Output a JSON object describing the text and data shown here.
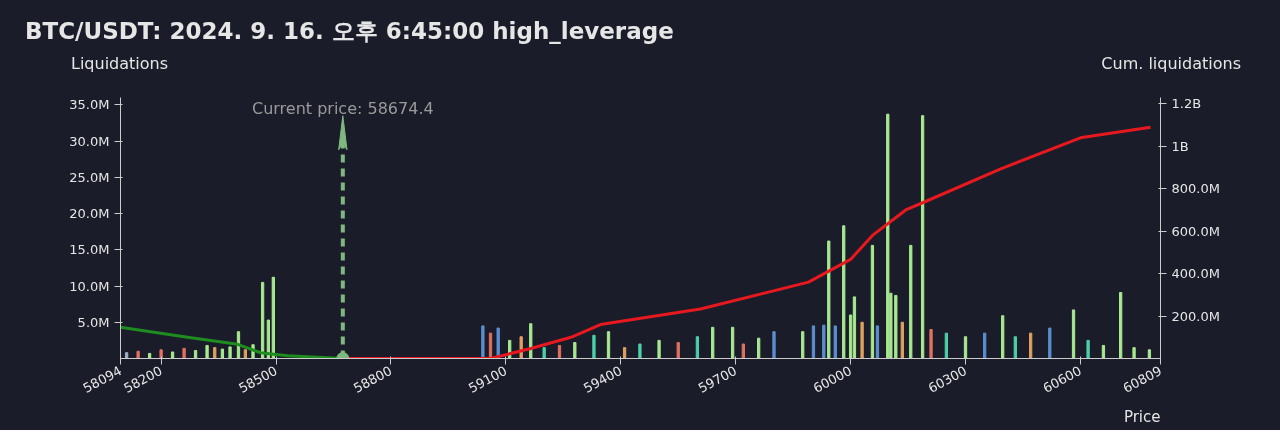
{
  "chart_data": {
    "type": "bar",
    "title": "BTC/USDT: 2024. 9. 16. 오후 6:45:00 high_leverage",
    "ylabel": "Liquidations",
    "y2label": "Cum. liquidations",
    "xlabel": "Price",
    "xlim": [
      58094,
      60809
    ],
    "xticks": [
      58094,
      58200,
      58500,
      58800,
      59100,
      59400,
      59700,
      60000,
      60300,
      60600,
      60809
    ],
    "ylim": [
      0,
      36000000
    ],
    "yticks": [
      {
        "value": 5000000,
        "label": "5.0M"
      },
      {
        "value": 10000000,
        "label": "10.0M"
      },
      {
        "value": 15000000,
        "label": "15.0M"
      },
      {
        "value": 20000000,
        "label": "20.0M"
      },
      {
        "value": 25000000,
        "label": "25.0M"
      },
      {
        "value": 30000000,
        "label": "30.0M"
      },
      {
        "value": 35000000,
        "label": "35.0M"
      }
    ],
    "y2lim": [
      0,
      1230000000
    ],
    "y2ticks": [
      {
        "value": 200000000,
        "label": "200.0M"
      },
      {
        "value": 400000000,
        "label": "400.0M"
      },
      {
        "value": 600000000,
        "label": "600.0M"
      },
      {
        "value": 800000000,
        "label": "800.0M"
      },
      {
        "value": 1000000000,
        "label": "1B"
      },
      {
        "value": 1200000000,
        "label": "1.2B"
      }
    ],
    "series": [
      {
        "x": [
          58110,
          58140,
          58170,
          58200,
          58230,
          58260,
          58290,
          58320,
          58340,
          58360,
          58380,
          58402,
          58420,
          58440,
          58465,
          58480,
          58493,
          58510,
          59040,
          59060,
          59080,
          59110,
          59140,
          59165,
          59200,
          59240,
          59280,
          59330,
          59368,
          59410,
          59450,
          59500,
          59550,
          59600,
          59640,
          59692,
          59720,
          59760,
          59800,
          59875,
          59903,
          59930,
          59943,
          59960,
          59982,
          60000,
          60010,
          60030,
          60057,
          60070,
          60097,
          60105,
          60118,
          60135,
          60157,
          60188,
          60210,
          60250,
          60300,
          60350,
          60397,
          60430,
          60470,
          60520,
          60582,
          60620,
          60660,
          60705,
          60740,
          60780
        ],
        "values": [
          800000,
          1000000,
          700000,
          1200000,
          900000,
          1400000,
          1100000,
          1800000,
          1500000,
          1300000,
          1600000,
          3700000,
          1200000,
          1900000,
          10500000,
          5300000,
          11200000,
          null,
          4500000,
          3500000,
          4200000,
          2500000,
          3000000,
          4800000,
          1500000,
          1800000,
          2200000,
          3200000,
          3700000,
          1500000,
          2000000,
          2500000,
          2200000,
          3000000,
          4300000,
          4300000,
          2000000,
          2800000,
          3700000,
          3700000,
          4500000,
          4600000,
          16200000,
          4500000,
          18300000,
          6000000,
          8500000,
          5000000,
          15600000,
          4500000,
          33700000,
          9000000,
          8700000,
          5000000,
          15600000,
          33500000,
          4000000,
          3500000,
          3000000,
          3500000,
          5900000,
          3000000,
          3500000,
          4200000,
          6700000,
          2500000,
          1800000,
          9100000,
          1500000,
          1200000
        ],
        "colors": [
          "#9fb0c8",
          "#e07060",
          "#a8e890",
          "#e07060",
          "#a8e890",
          "#e07060",
          "#a8e890",
          "#a8e890",
          "#e0a060",
          "#a8e890",
          "#a8e890",
          "#a8e890",
          "#e0a060",
          "#a8e890",
          "#a8e890",
          "#a8e890",
          "#a8e890",
          "#a8e890",
          "#5b8fd0",
          "#e07060",
          "#5b8fd0",
          "#a8e890",
          "#e0a060",
          "#a8e890",
          "#4ccfa8",
          "#e07060",
          "#a8e890",
          "#4ccfa8",
          "#a8e890",
          "#e0a060",
          "#4ccfa8",
          "#a8e890",
          "#e07060",
          "#4ccfa8",
          "#a8e890",
          "#a8e890",
          "#e07060",
          "#a8e890",
          "#5b8fd0",
          "#a8e890",
          "#5b8fd0",
          "#5b8fd0",
          "#a8e890",
          "#5b8fd0",
          "#a8e890",
          "#a8e890",
          "#a8e890",
          "#e0a060",
          "#a8e890",
          "#5b8fd0",
          "#a8e890",
          "#a8e890",
          "#a8e890",
          "#e0a060",
          "#a8e890",
          "#a8e890",
          "#e07060",
          "#4ccfa8",
          "#a8e890",
          "#5b8fd0",
          "#a8e890",
          "#4ccfa8",
          "#e0a060",
          "#5b8fd0",
          "#a8e890",
          "#4ccfa8",
          "#a8e890",
          "#a8e890",
          "#a8e890",
          "#a8e890"
        ]
      },
      {
        "type": "line",
        "axis": "y2",
        "color": "#1e8c1e",
        "x": [
          58094,
          58269,
          58400,
          58460,
          58530,
          58674.4
        ],
        "values": [
          147000000,
          100000000,
          67000000,
          27000000,
          13000000,
          0
        ]
      },
      {
        "type": "line",
        "axis": "y2",
        "color": "#e8191e",
        "x": [
          58674.4,
          59060,
          59165,
          59270,
          59347,
          59608,
          59890,
          60000,
          60057,
          60144,
          60188,
          60392,
          60600,
          60783
        ],
        "values": [
          0,
          0,
          47000000,
          100000000,
          160000000,
          233000000,
          360000000,
          467000000,
          580000000,
          700000000,
          734000000,
          894000000,
          1040000000,
          1090000000
        ]
      }
    ],
    "ref_lines": [
      {
        "axis": "x",
        "value": 58674.4,
        "label": "Current price: 58674.4",
        "color": "#7fb87f",
        "line_style": "dashed"
      }
    ]
  }
}
